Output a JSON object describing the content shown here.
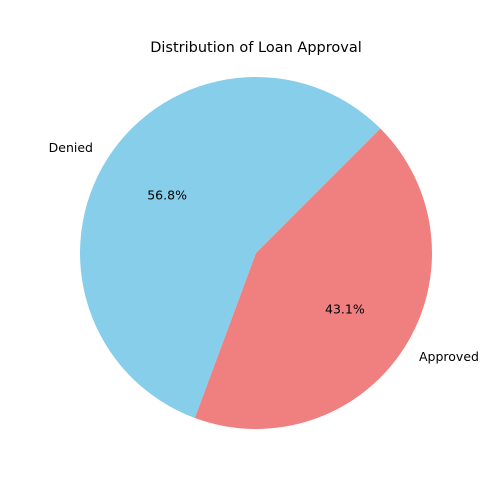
{
  "chart_data": {
    "type": "pie",
    "title": "Distribution of Loan Approval",
    "categories": [
      "Denied",
      "Approved"
    ],
    "values": [
      56.8,
      43.1
    ],
    "percent_labels": [
      "56.8%",
      "43.1%"
    ],
    "colors": [
      "#87CEEB",
      "#F08080"
    ],
    "start_angle_deg": 45,
    "direction": "counterclockwise",
    "legend": "none"
  }
}
